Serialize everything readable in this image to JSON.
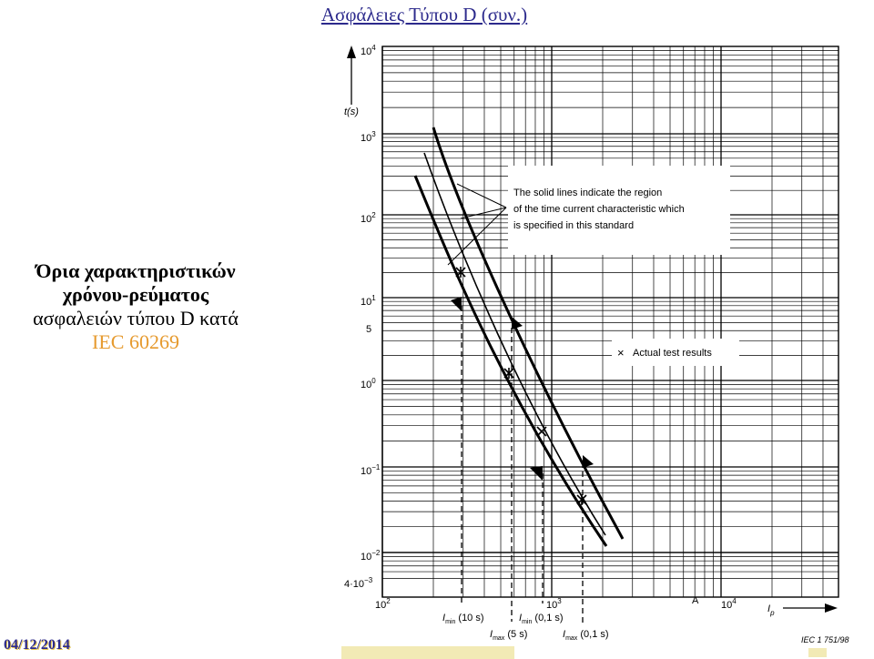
{
  "slide": {
    "title": "Ασφάλειες Τύπου D (συν.)",
    "side_line1": "Όρια χαρακτηριστικών",
    "side_line2": "χρόνου-ρεύματος",
    "side_line3": "ασφαλειών τύπου D κατά",
    "side_line4": "IEC 60269",
    "date": "04/12/2014"
  },
  "chart": {
    "y_axis_label": "t(s)",
    "x_axis_label": "I",
    "x_axis_subscript": "p",
    "x_unit": "A",
    "y_ticks": [
      {
        "base": "10",
        "exp": "4"
      },
      {
        "base": "10",
        "exp": "3"
      },
      {
        "base": "10",
        "exp": "2"
      },
      {
        "base": "10",
        "exp": "1"
      },
      {
        "base": "5",
        "exp": ""
      },
      {
        "base": "10",
        "exp": "0"
      },
      {
        "base": "10",
        "exp": "−1"
      },
      {
        "base": "10",
        "exp": "−2"
      },
      {
        "base": "4·10",
        "exp": "−3"
      }
    ],
    "x_ticks": [
      {
        "base": "10",
        "exp": "2"
      },
      {
        "base": "10",
        "exp": "3"
      },
      {
        "base": "10",
        "exp": "4"
      }
    ],
    "annotation_line1": "The solid lines indicate the region",
    "annotation_line2": "of the time current characteristic which",
    "annotation_line3": "is specified in this standard",
    "legend_label": "Actual test results",
    "legend_marker": "×",
    "limit_labels": [
      {
        "main": "I",
        "sub": "min",
        "suffix": " (10 s)"
      },
      {
        "main": "I",
        "sub": "max",
        "suffix": " (5 s)"
      },
      {
        "main": "I",
        "sub": "min",
        "suffix": " (0,1 s)"
      },
      {
        "main": "I",
        "sub": "max",
        "suffix": " (0,1 s)"
      }
    ],
    "source_ref": "IEC  1 751/98"
  }
}
